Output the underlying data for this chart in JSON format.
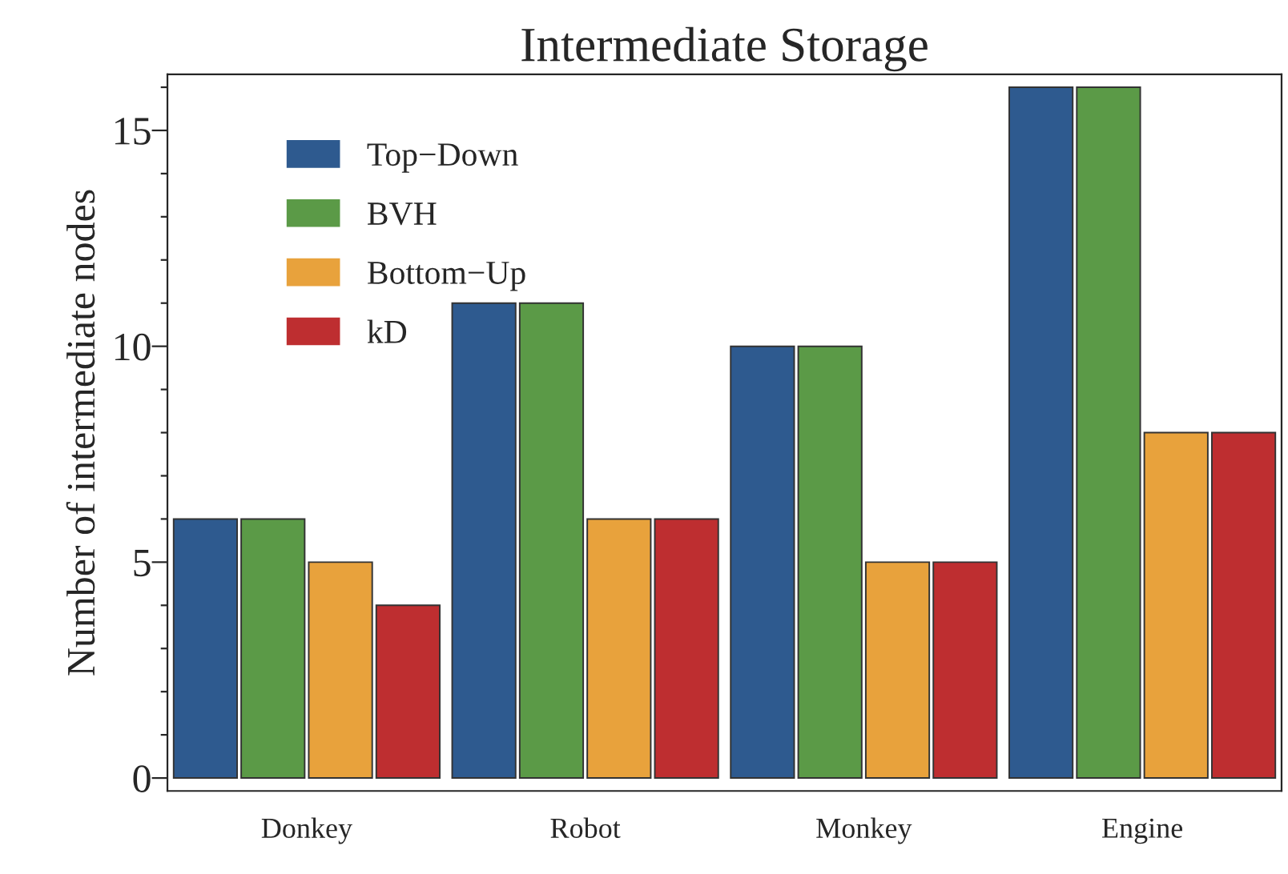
{
  "chart_data": {
    "type": "bar",
    "title": "Intermediate Storage",
    "ylabel": "Number of intermediate nodes",
    "categories": [
      "Donkey",
      "Robot",
      "Monkey",
      "Engine"
    ],
    "series": [
      {
        "name": "Top−Down",
        "color": "#2e5a8f",
        "values": [
          6,
          11,
          10,
          16
        ]
      },
      {
        "name": "BVH",
        "color": "#5b9a47",
        "values": [
          6,
          11,
          10,
          16
        ]
      },
      {
        "name": "Bottom−Up",
        "color": "#e8a23c",
        "values": [
          5,
          6,
          5,
          8
        ]
      },
      {
        "name": "kD",
        "color": "#be2e30",
        "values": [
          4,
          6,
          5,
          8
        ]
      }
    ],
    "ylim": [
      -0.3,
      16.3
    ],
    "yticks": [
      0,
      {
        "value": 1,
        "label": null
      },
      {
        "value": 2,
        "label": null
      },
      {
        "value": 3,
        "label": null
      },
      {
        "value": 4,
        "label": null
      },
      5,
      {
        "value": 6,
        "label": null
      },
      {
        "value": 7,
        "label": null
      },
      {
        "value": 8,
        "label": null
      },
      {
        "value": 9,
        "label": null
      },
      10,
      {
        "value": 11,
        "label": null
      },
      {
        "value": 12,
        "label": null
      },
      {
        "value": 13,
        "label": null
      },
      {
        "value": 14,
        "label": null
      },
      15,
      {
        "value": 16,
        "label": null
      }
    ],
    "grid": false,
    "legend": "top left"
  }
}
